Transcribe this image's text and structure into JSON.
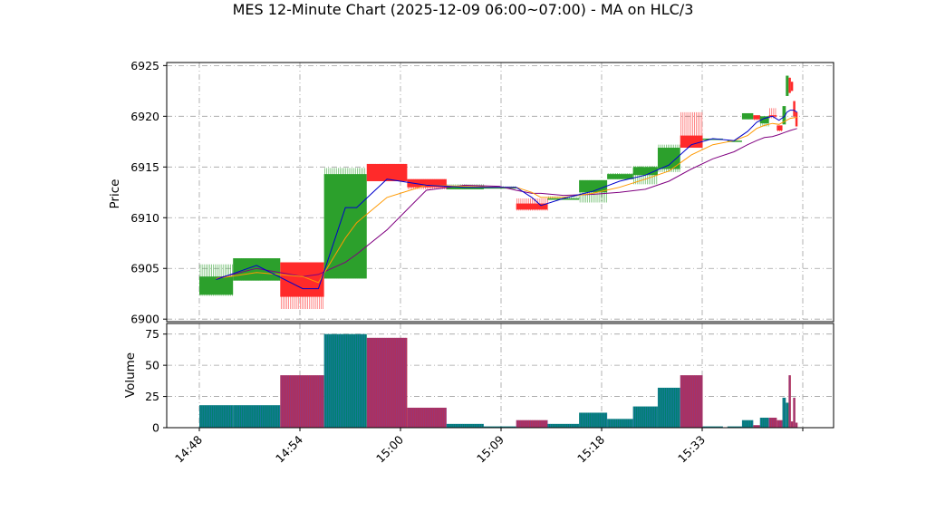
{
  "chart_data": {
    "type": "candlestick",
    "title": "MES 12-Minute Chart (2025-12-09 06:00~07:00) - MA on HLC/3",
    "price_axis": {
      "ylabel": "Price",
      "ylim": [
        6900,
        6925
      ],
      "ticks": [
        6900,
        6905,
        6910,
        6915,
        6920,
        6925
      ]
    },
    "volume_axis": {
      "ylabel": "Volume",
      "ylim": [
        0,
        80
      ],
      "ticks": [
        0,
        25,
        50,
        75
      ]
    },
    "x_ticks": [
      "14:48",
      "14:54",
      "15:00",
      "15:09",
      "15:18",
      "15:33"
    ],
    "grid": true,
    "colors": {
      "up": "#2ca02c",
      "down": "#ff2a2a",
      "ma_fast": "#0000cc",
      "ma_mid": "#ff9900",
      "ma_slow": "#800080",
      "vol_up": "#00806f",
      "vol_down": "#b0305a"
    },
    "candles": [
      {
        "t": 0,
        "w": 3.0,
        "open": 6902.4,
        "high": 6905.4,
        "low": 6902.3,
        "close": 6904.2,
        "volume": 18
      },
      {
        "t": 3.0,
        "w": 4.2,
        "open": 6903.8,
        "high": 6906.0,
        "low": 6903.8,
        "close": 6906.0,
        "volume": 18
      },
      {
        "t": 7.2,
        "w": 3.9,
        "open": 6905.6,
        "high": 6905.6,
        "low": 6901.0,
        "close": 6902.2,
        "volume": 42
      },
      {
        "t": 11.1,
        "w": 3.8,
        "open": 6904.0,
        "high": 6914.9,
        "low": 6904.0,
        "close": 6914.3,
        "volume": 75
      },
      {
        "t": 14.9,
        "w": 3.6,
        "open": 6915.3,
        "high": 6915.3,
        "low": 6913.6,
        "close": 6913.6,
        "volume": 72
      },
      {
        "t": 18.5,
        "w": 3.5,
        "open": 6913.8,
        "high": 6913.8,
        "low": 6912.8,
        "close": 6913.0,
        "volume": 16
      },
      {
        "t": 22.0,
        "w": 3.3,
        "open": 6912.8,
        "high": 6913.3,
        "low": 6912.8,
        "close": 6913.1,
        "volume": 3
      },
      {
        "t": 25.3,
        "w": 2.9,
        "open": 6913.0,
        "high": 6913.1,
        "low": 6912.9,
        "close": 6913.0,
        "volume": 1
      },
      {
        "t": 28.2,
        "w": 2.8,
        "open": 6911.4,
        "high": 6911.9,
        "low": 6910.7,
        "close": 6910.8,
        "volume": 6
      },
      {
        "t": 31.0,
        "w": 2.8,
        "open": 6911.9,
        "high": 6912.1,
        "low": 6911.8,
        "close": 6911.9,
        "volume": 3
      },
      {
        "t": 33.8,
        "w": 2.5,
        "open": 6912.5,
        "high": 6913.7,
        "low": 6911.5,
        "close": 6913.7,
        "volume": 12
      },
      {
        "t": 36.3,
        "w": 2.3,
        "open": 6913.8,
        "high": 6914.4,
        "low": 6913.8,
        "close": 6914.3,
        "volume": 7
      },
      {
        "t": 38.6,
        "w": 2.2,
        "open": 6914.2,
        "high": 6915.1,
        "low": 6913.3,
        "close": 6915.0,
        "volume": 17
      },
      {
        "t": 40.8,
        "w": 2.0,
        "open": 6914.8,
        "high": 6917.2,
        "low": 6914.5,
        "close": 6916.9,
        "volume": 32
      },
      {
        "t": 42.8,
        "w": 2.0,
        "open": 6918.1,
        "high": 6920.4,
        "low": 6916.9,
        "close": 6916.9,
        "volume": 42
      },
      {
        "t": 44.8,
        "w": 1.8,
        "open": 6917.8,
        "high": 6917.8,
        "low": 6917.8,
        "close": 6917.8,
        "volume": 1
      },
      {
        "t": 47.0,
        "w": 1.3,
        "open": 6917.6,
        "high": 6917.6,
        "low": 6917.6,
        "close": 6917.6,
        "volume": 1
      },
      {
        "t": 48.3,
        "w": 1.0,
        "open": 6919.7,
        "high": 6920.3,
        "low": 6919.7,
        "close": 6920.3,
        "volume": 6
      },
      {
        "t": 49.3,
        "w": 0.6,
        "open": 6920.1,
        "high": 6920.1,
        "low": 6919.6,
        "close": 6919.7,
        "volume": 2
      },
      {
        "t": 49.9,
        "w": 0.8,
        "open": 6919.3,
        "high": 6920.0,
        "low": 6919.0,
        "close": 6920.0,
        "volume": 8
      },
      {
        "t": 50.7,
        "w": 0.7,
        "open": 6920.1,
        "high": 6920.8,
        "low": 6919.8,
        "close": 6920.0,
        "volume": 8
      },
      {
        "t": 51.4,
        "w": 0.5,
        "open": 6919.1,
        "high": 6919.1,
        "low": 6918.5,
        "close": 6918.6,
        "volume": 6
      },
      {
        "t": 51.9,
        "w": 0.3,
        "open": 6919.2,
        "high": 6921.0,
        "low": 6919.2,
        "close": 6921.0,
        "volume": 24
      },
      {
        "t": 52.2,
        "w": 0.25,
        "open": 6922.0,
        "high": 6924.0,
        "low": 6922.0,
        "close": 6924.0,
        "volume": 20
      },
      {
        "t": 52.45,
        "w": 0.2,
        "open": 6923.8,
        "high": 6923.8,
        "low": 6922.3,
        "close": 6922.3,
        "volume": 42
      },
      {
        "t": 52.65,
        "w": 0.2,
        "open": 6923.4,
        "high": 6923.4,
        "low": 6922.5,
        "close": 6922.5,
        "volume": 5
      },
      {
        "t": 52.85,
        "w": 0.2,
        "open": 6921.5,
        "high": 6921.5,
        "low": 6919.9,
        "close": 6920.0,
        "volume": 24
      },
      {
        "t": 53.05,
        "w": 0.2,
        "open": 6920.4,
        "high": 6920.4,
        "low": 6919.0,
        "close": 6919.0,
        "volume": 4
      }
    ],
    "ma_fast": [
      [
        1.5,
        6903.9
      ],
      [
        5.1,
        6905.3
      ],
      [
        9.2,
        6903.0
      ],
      [
        10.6,
        6903.0
      ],
      [
        13.0,
        6911.0
      ],
      [
        14.0,
        6911.0
      ],
      [
        16.7,
        6913.8
      ],
      [
        20.2,
        6913.2
      ],
      [
        23.6,
        6913.0
      ],
      [
        26.7,
        6913.0
      ],
      [
        28.2,
        6913.0
      ],
      [
        29.6,
        6912.0
      ],
      [
        30.4,
        6911.2
      ],
      [
        32.4,
        6911.9
      ],
      [
        35.0,
        6912.6
      ],
      [
        37.4,
        6913.6
      ],
      [
        39.7,
        6914.2
      ],
      [
        41.8,
        6915.2
      ],
      [
        43.8,
        6917.2
      ],
      [
        45.7,
        6917.8
      ],
      [
        47.6,
        6917.6
      ],
      [
        48.8,
        6918.5
      ],
      [
        49.6,
        6919.4
      ],
      [
        50.3,
        6919.8
      ],
      [
        51.0,
        6920.0
      ],
      [
        51.6,
        6919.6
      ],
      [
        52.1,
        6920.0
      ],
      [
        52.3,
        6920.4
      ],
      [
        52.6,
        6920.6
      ],
      [
        52.9,
        6920.6
      ],
      [
        53.2,
        6920.4
      ]
    ],
    "ma_mid": [
      [
        1.5,
        6904.0
      ],
      [
        5.1,
        6904.6
      ],
      [
        9.2,
        6904.2
      ],
      [
        10.6,
        6903.6
      ],
      [
        13.0,
        6908.0
      ],
      [
        14.0,
        6909.5
      ],
      [
        16.7,
        6912.0
      ],
      [
        20.2,
        6913.2
      ],
      [
        23.6,
        6913.1
      ],
      [
        26.7,
        6913.0
      ],
      [
        28.2,
        6913.0
      ],
      [
        29.6,
        6912.5
      ],
      [
        30.4,
        6912.0
      ],
      [
        32.4,
        6912.0
      ],
      [
        35.0,
        6912.4
      ],
      [
        37.4,
        6913.0
      ],
      [
        39.7,
        6913.8
      ],
      [
        41.8,
        6914.6
      ],
      [
        43.8,
        6916.2
      ],
      [
        45.7,
        6917.2
      ],
      [
        47.6,
        6917.6
      ],
      [
        48.8,
        6918.1
      ],
      [
        49.6,
        6918.8
      ],
      [
        50.3,
        6919.1
      ],
      [
        51.0,
        6919.3
      ],
      [
        51.6,
        6919.2
      ],
      [
        52.1,
        6919.5
      ],
      [
        52.6,
        6919.8
      ],
      [
        53.2,
        6919.9
      ]
    ],
    "ma_slow": [
      [
        1.5,
        6904.0
      ],
      [
        5.1,
        6905.0
      ],
      [
        9.2,
        6904.2
      ],
      [
        10.6,
        6904.4
      ],
      [
        13.0,
        6905.6
      ],
      [
        14.0,
        6906.4
      ],
      [
        16.7,
        6908.8
      ],
      [
        20.2,
        6912.7
      ],
      [
        23.6,
        6913.2
      ],
      [
        26.7,
        6913.1
      ],
      [
        28.2,
        6912.7
      ],
      [
        29.6,
        6912.4
      ],
      [
        30.4,
        6912.4
      ],
      [
        32.4,
        6912.2
      ],
      [
        35.0,
        6912.3
      ],
      [
        37.4,
        6912.5
      ],
      [
        39.7,
        6912.8
      ],
      [
        41.8,
        6913.6
      ],
      [
        43.8,
        6914.8
      ],
      [
        45.7,
        6915.8
      ],
      [
        47.6,
        6916.5
      ],
      [
        48.8,
        6917.2
      ],
      [
        49.6,
        6917.6
      ],
      [
        50.3,
        6917.9
      ],
      [
        51.0,
        6918.0
      ],
      [
        51.6,
        6918.2
      ],
      [
        52.1,
        6918.4
      ],
      [
        52.6,
        6918.6
      ],
      [
        53.2,
        6918.8
      ]
    ]
  }
}
